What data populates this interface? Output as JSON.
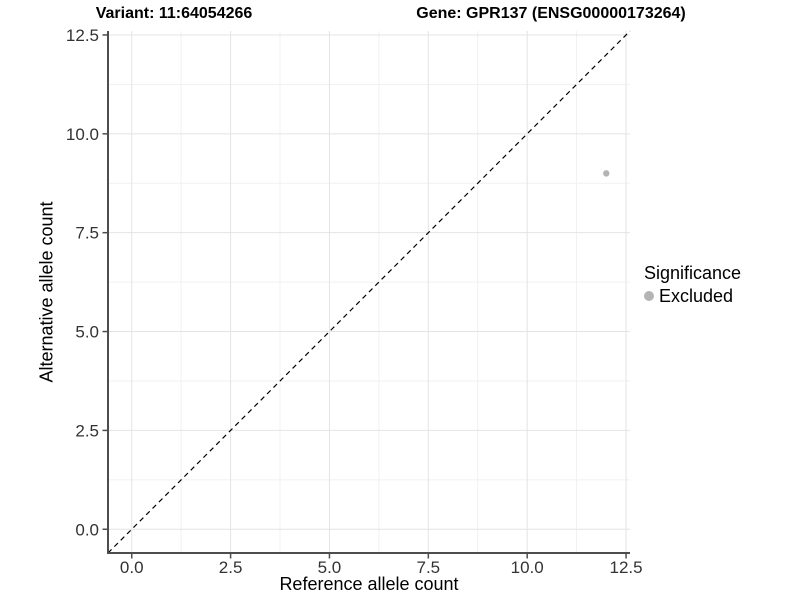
{
  "chart_data": {
    "type": "scatter",
    "title_left": "Variant: 11:64054266",
    "title_right": "Gene: GPR137 (ENSG00000173264)",
    "xlabel": "Reference allele count",
    "ylabel": "Alternative allele count",
    "xlim": [
      -0.6,
      12.6
    ],
    "ylim": [
      -0.6,
      12.6
    ],
    "x_ticks": [
      0,
      2.5,
      5,
      7.5,
      10,
      12.5
    ],
    "x_tick_labels": [
      "0.0",
      "2.5",
      "5.0",
      "7.5",
      "10.0",
      "12.5"
    ],
    "y_ticks": [
      0,
      2.5,
      5,
      7.5,
      10,
      12.5
    ],
    "y_tick_labels": [
      "0.0",
      "2.5",
      "5.0",
      "7.5",
      "10.0",
      "12.5"
    ],
    "minor_ticks": [
      1.25,
      3.75,
      6.25,
      8.75,
      11.25
    ],
    "grid": "major+minor",
    "legend_position": "right",
    "identity_line": {
      "type": "y=x",
      "style": "dashed",
      "color": "#000000"
    },
    "series": [
      {
        "name": "Excluded",
        "color": "#b4b4b4",
        "points": [
          [
            12,
            9
          ]
        ]
      }
    ],
    "legend": {
      "title": "Significance",
      "entries": [
        {
          "label": "Excluded",
          "color": "#b4b4b4",
          "marker": "circle"
        }
      ]
    }
  },
  "colors": {
    "background": "#ffffff",
    "grid_major": "#e4e4e4",
    "grid_minor": "#f1f1f1",
    "axis_line": "#4d4d4d",
    "tick_text": "#333333",
    "point": "#b4b4b4"
  }
}
